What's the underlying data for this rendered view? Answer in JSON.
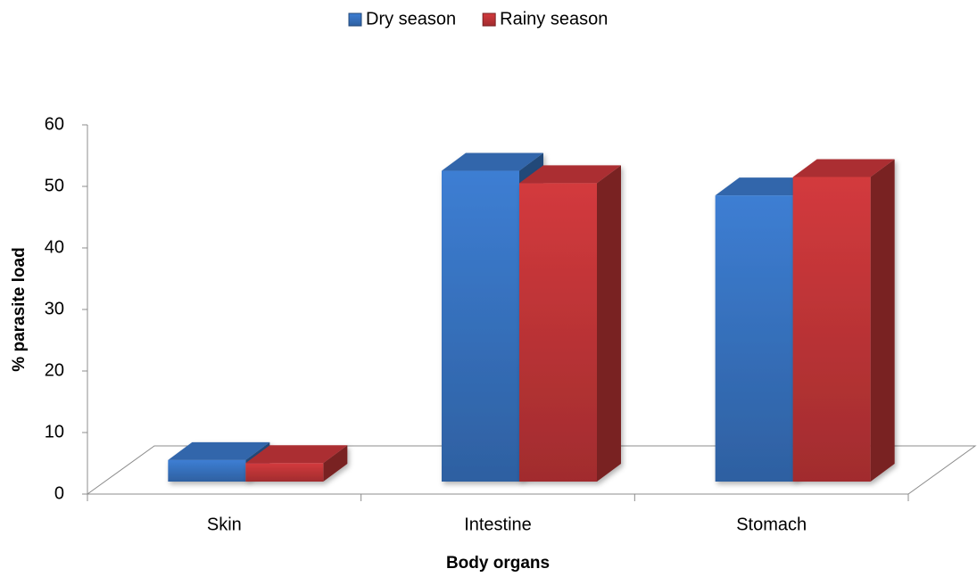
{
  "chart_data": {
    "type": "bar3d",
    "categories": [
      "Skin",
      "Intestine",
      "Stomach"
    ],
    "series": [
      {
        "name": "Dry season",
        "color": "#3a78c9",
        "values": [
          3.5,
          50.5,
          46.5
        ]
      },
      {
        "name": "Rainy season",
        "color": "#c9373a",
        "values": [
          3,
          48.5,
          49.5
        ]
      }
    ],
    "x_label": "Body organs",
    "y_label": "% parasite load",
    "ylim": [
      0,
      60
    ],
    "yticks": [
      0,
      10,
      20,
      30,
      40,
      50,
      60
    ],
    "legend": "top"
  }
}
